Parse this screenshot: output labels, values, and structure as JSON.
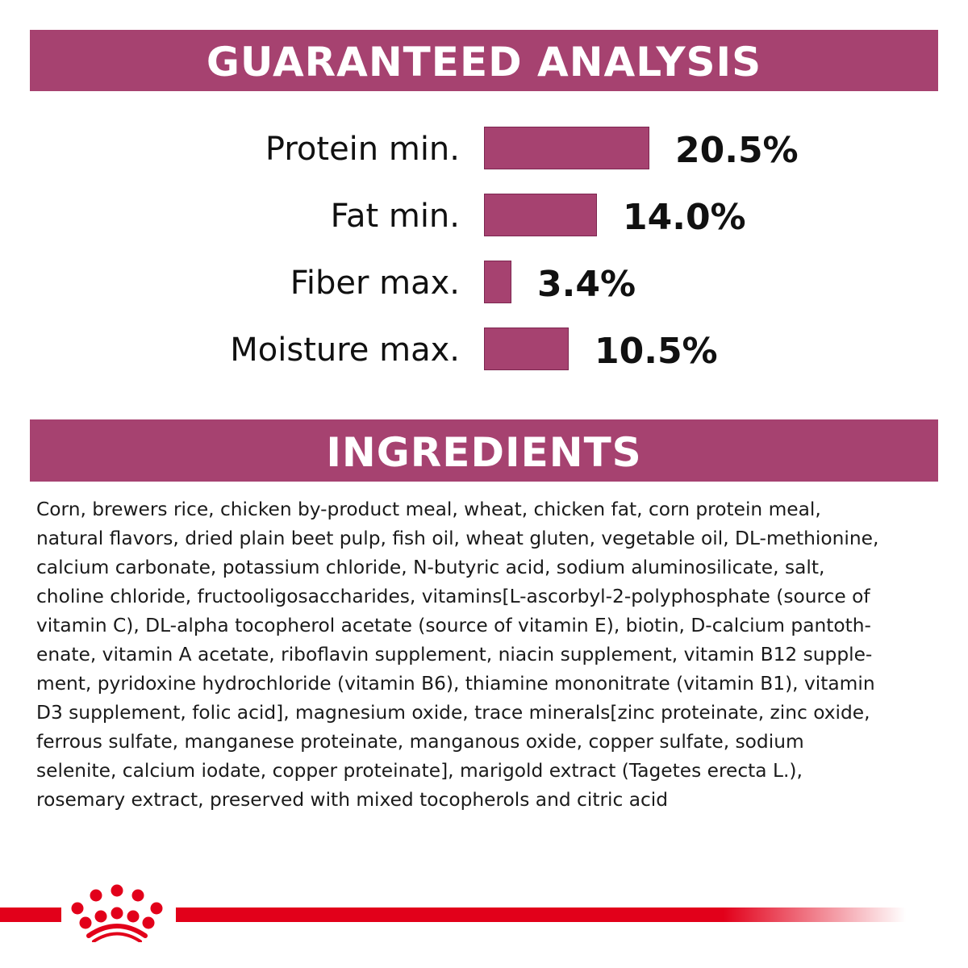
{
  "colors": {
    "accent": "#a64270",
    "brand_red": "#e2001a",
    "text": "#111111"
  },
  "guaranteed_analysis": {
    "title": "GUARANTEED ANALYSIS"
  },
  "chart_data": {
    "type": "bar",
    "orientation": "horizontal",
    "title": "GUARANTEED ANALYSIS",
    "categories": [
      "Protein min.",
      "Fat min.",
      "Fiber max.",
      "Moisture max."
    ],
    "values": [
      20.5,
      14.0,
      3.4,
      10.5
    ],
    "value_labels": [
      "20.5%",
      "14.0%",
      "3.4%",
      "10.5%"
    ],
    "unit": "%",
    "grid": false,
    "axes_visible": false
  },
  "ingredients": {
    "title": "INGREDIENTS",
    "lines": [
      "Corn, brewers rice, chicken by-product meal, wheat, chicken fat, corn protein meal,",
      "natural flavors, dried plain beet pulp, fish oil, wheat gluten, vegetable oil, DL-methionine,",
      "calcium carbonate, potassium chloride, N-butyric acid, sodium aluminosilicate, salt,",
      "choline chloride, fructooligosaccharides, vitamins[L-ascorbyl-2-polyphosphate (source of",
      "vitamin C), DL-alpha tocopherol acetate (source of vitamin E), biotin, D-calcium pantoth-",
      "enate, vitamin A acetate, riboflavin supplement, niacin supplement, vitamin B12 supple-",
      "ment, pyridoxine hydrochloride (vitamin B6), thiamine mononitrate (vitamin B1), vitamin",
      "D3 supplement, folic acid], magnesium oxide, trace minerals[zinc proteinate, zinc oxide,",
      "ferrous sulfate, manganese proteinate, manganous oxide, copper sulfate, sodium",
      "selenite, calcium iodate, copper proteinate], marigold extract (Tagetes erecta L.),",
      "rosemary extract, preserved with mixed tocopherols and citric acid"
    ]
  },
  "footer": {
    "logo_icon": "royal-canin-crown-icon"
  }
}
